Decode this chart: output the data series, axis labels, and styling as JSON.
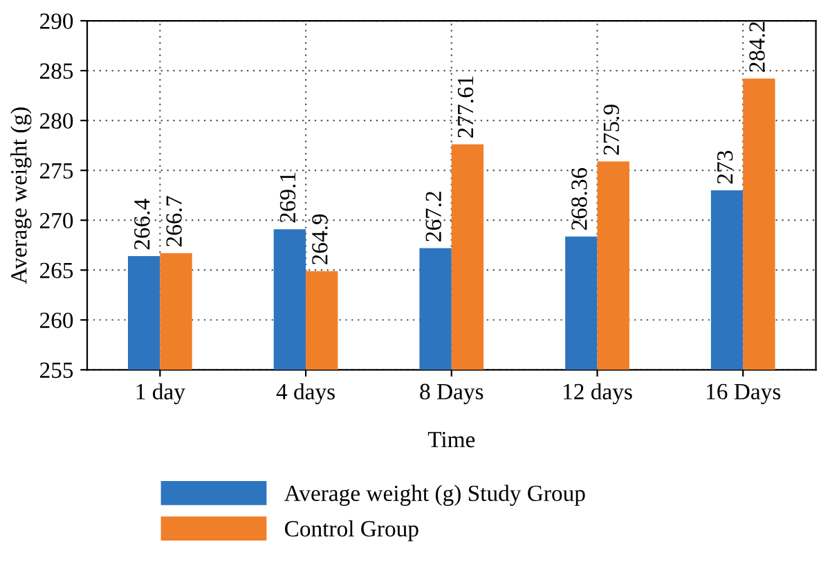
{
  "chart_data": {
    "type": "bar",
    "xlabel": "Time",
    "ylabel": "Average weight (g)",
    "categories": [
      "1 day",
      "4 days",
      "8 Days",
      "12 days",
      "16 Days"
    ],
    "series": [
      {
        "name": "Average weight (g) Study Group",
        "color": "#2e75c0",
        "values": [
          266.4,
          269.1,
          267.2,
          268.36,
          273
        ]
      },
      {
        "name": "Control Group",
        "color": "#f07f2a",
        "values": [
          266.7,
          264.9,
          277.61,
          275.9,
          284.2
        ]
      }
    ],
    "ylim": [
      255,
      290
    ],
    "yticks": [
      255,
      260,
      265,
      270,
      275,
      280,
      285,
      290
    ],
    "grid": true,
    "legend": "bottom",
    "data_labels": true
  }
}
